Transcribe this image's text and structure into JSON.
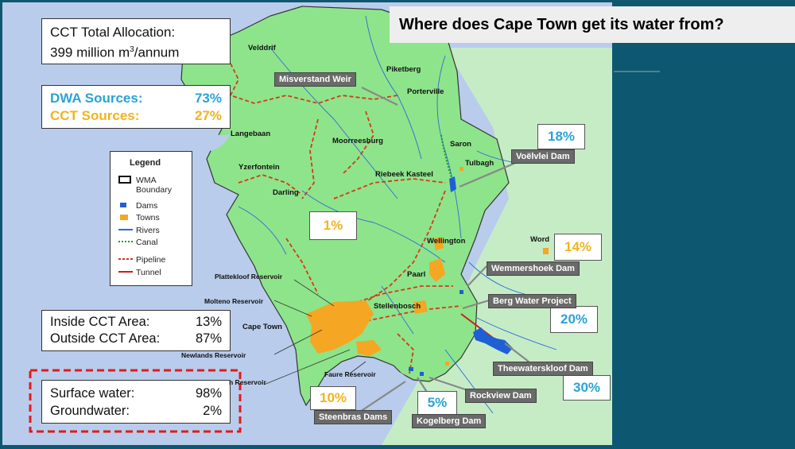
{
  "title": "Where does Cape Town get its water from?",
  "allocation": {
    "line1": "CCT Total Allocation:",
    "line2_prefix": "399 million m",
    "line2_sup": "3",
    "line2_suffix": "/annum"
  },
  "sources": [
    {
      "label": "DWA Sources:",
      "value": "73%",
      "color": "#29a3d6"
    },
    {
      "label": "CCT Sources:",
      "value": "27%",
      "color": "#f2b31c"
    }
  ],
  "area_split": [
    {
      "label": "Inside CCT Area:",
      "value": "13%"
    },
    {
      "label": "Outside CCT Area:",
      "value": "87%"
    }
  ],
  "water_type": [
    {
      "label": "Surface water:",
      "value": "98%"
    },
    {
      "label": "Groundwater:",
      "value": "2%"
    }
  ],
  "legend": {
    "title": "Legend",
    "items": [
      {
        "label": "WMA Boundary",
        "symbol": "box"
      },
      {
        "label": "Dams",
        "symbol": "dam",
        "color": "#1f5fd6"
      },
      {
        "label": "Towns",
        "symbol": "town",
        "color": "#f5a623"
      },
      {
        "label": "Rivers",
        "symbol": "line",
        "color": "#2b6cd8"
      },
      {
        "label": "Canal",
        "symbol": "dotted",
        "color": "#1a9b2a"
      },
      {
        "label": "Pipeline",
        "symbol": "dashed",
        "color": "#d23a1a"
      },
      {
        "label": "Tunnel",
        "symbol": "line",
        "color": "#c81e1e"
      }
    ]
  },
  "percent_boxes": [
    {
      "value": "18%",
      "color": "#29a3d6"
    },
    {
      "value": "1%",
      "color": "#f2b31c"
    },
    {
      "value": "14%",
      "color": "#f2b31c"
    },
    {
      "value": "20%",
      "color": "#29a3d6"
    },
    {
      "value": "30%",
      "color": "#29a3d6"
    },
    {
      "value": "10%",
      "color": "#f2b31c"
    },
    {
      "value": "5%",
      "color": "#29a3d6"
    }
  ],
  "dam_labels": [
    "Misverstand Weir",
    "Voëlvlei Dam",
    "Wemmershoek Dam",
    "Berg Water Project",
    "Theewaterskloof Dam",
    "Rockview Dam",
    "Kogelberg Dam",
    "Steenbras Dams"
  ],
  "places": [
    "Velddrif",
    "Piketberg",
    "Porterville",
    "Saron",
    "Tulbagh",
    "Langebaan",
    "Moorreesburg",
    "Yzerfontein",
    "Riebeek Kasteel",
    "Darling",
    "Wellington",
    "Word",
    "Paarl",
    "Plattekloof Reservoir",
    "Molteno Reservoir",
    "Stellenbosch",
    "Cape Town",
    "Newlands Reservoir",
    "Faure Reservoir",
    "n Reservoir"
  ],
  "colors": {
    "sea": "#b9ccec",
    "land": "#8ee48a",
    "land_outside": "#c6ecc6",
    "background": "#0e5770",
    "highlight": "#e01b1b"
  }
}
